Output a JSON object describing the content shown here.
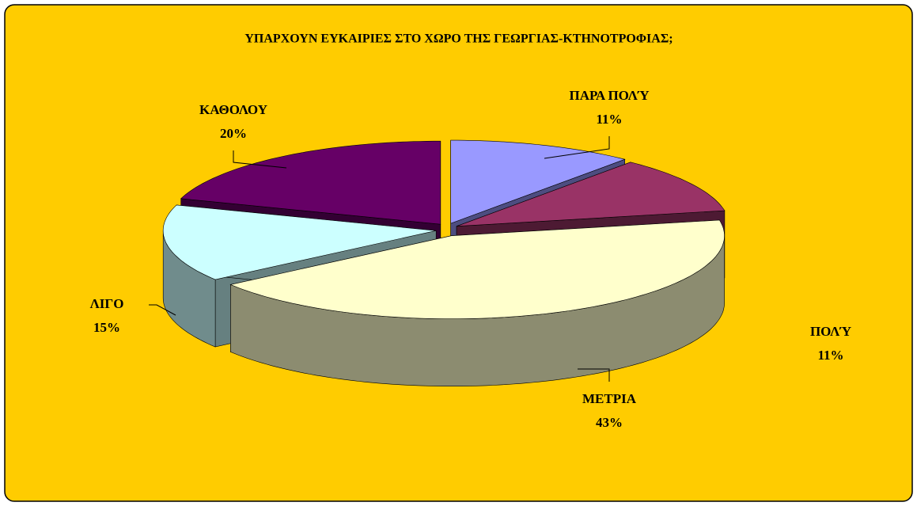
{
  "chart_data": {
    "type": "pie",
    "title": "ΥΠΑΡΧΟΥΝ ΕΥΚΑΙΡΙΕΣ ΣΤΟ ΧΩΡΟ ΤΗΣ ΓΕΩΡΓΙΑΣ-ΚΤΗΝΟΤΡΟΦΙΑΣ;",
    "categories": [
      "ΠΑΡΑ ΠΟΛΎ",
      "ΠΟΛΎ",
      "ΜΕΤΡΙΑ",
      "ΛΙΓΟ",
      "ΚΑΘΟΛΟΥ"
    ],
    "values": [
      11,
      11,
      43,
      15,
      20
    ],
    "value_labels": [
      "11%",
      "11%",
      "43%",
      "15%",
      "20%"
    ],
    "colors": [
      "#9999ff",
      "#993366",
      "#ffffcc",
      "#ccffff",
      "#660066"
    ]
  }
}
